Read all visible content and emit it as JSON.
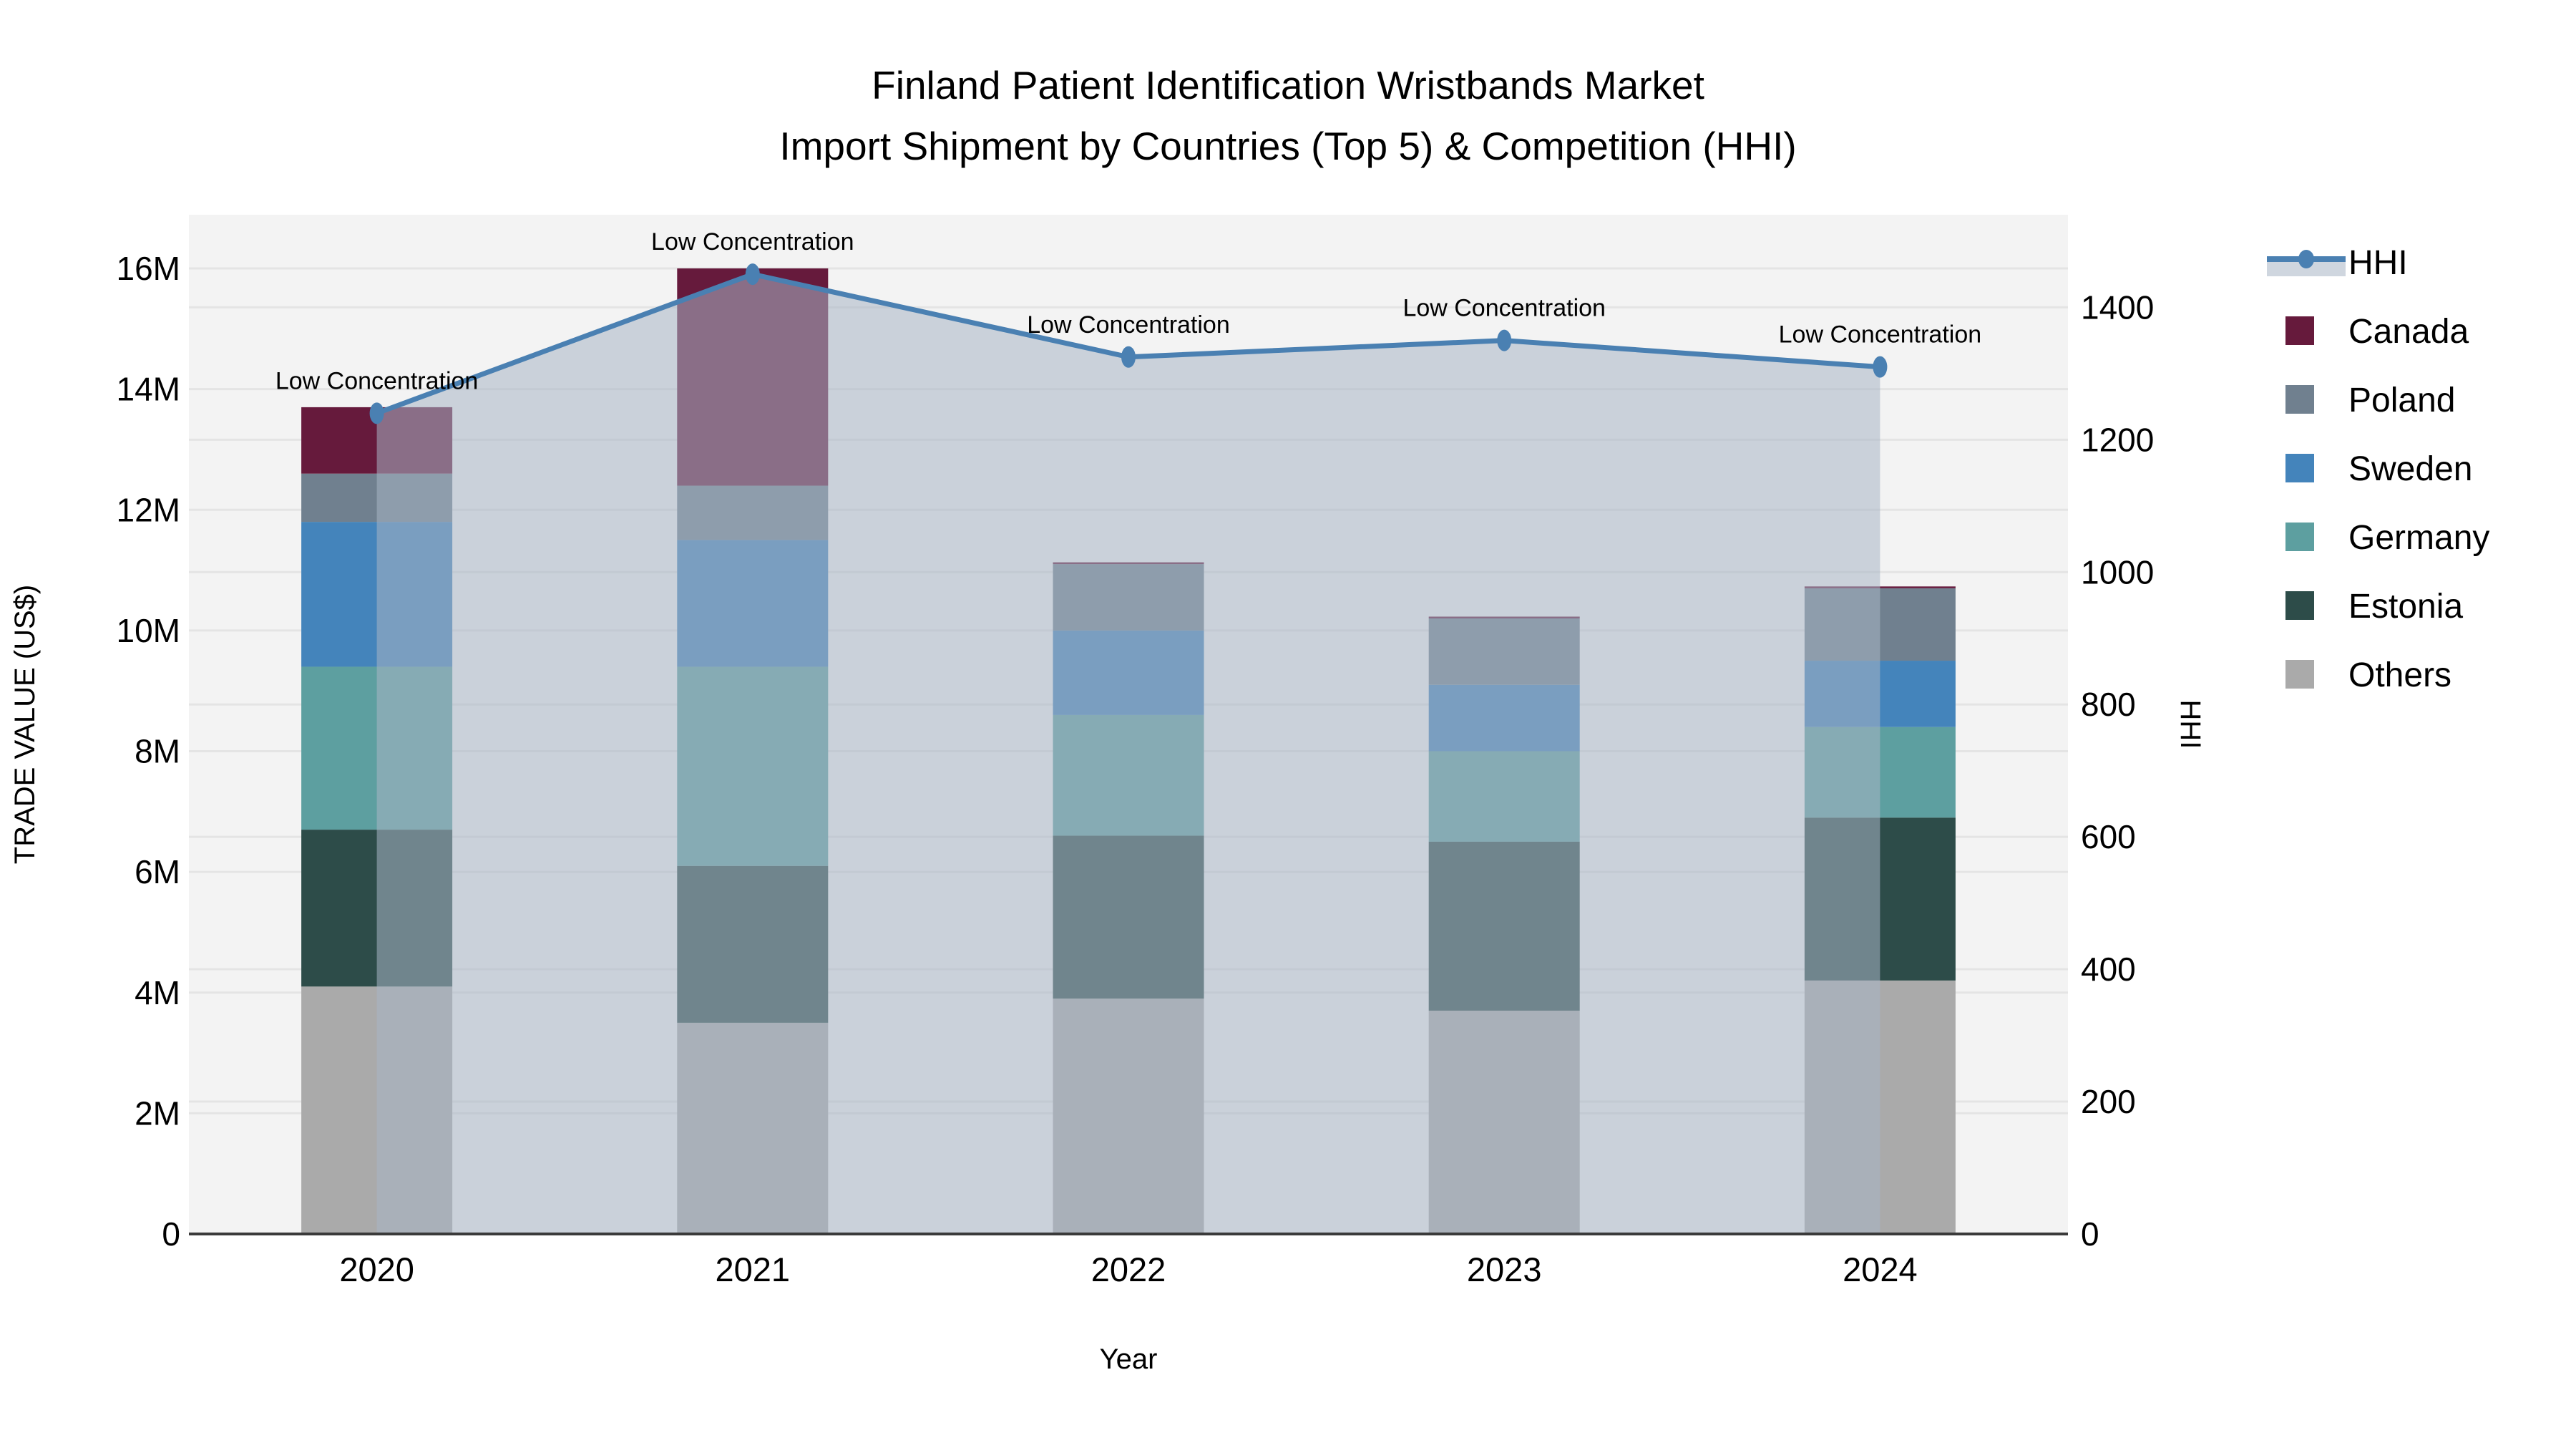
{
  "title": {
    "line1": "Finland Patient Identification Wristbands Market",
    "line2": "Import Shipment by Countries (Top 5) & Competition (HHI)"
  },
  "axes": {
    "x": {
      "title": "Year",
      "tick_labels": [
        "2020",
        "2021",
        "2022",
        "2023",
        "2024"
      ]
    },
    "y_left": {
      "title": "TRADE VALUE (US$)",
      "tick_labels": [
        "0",
        "2M",
        "4M",
        "6M",
        "8M",
        "10M",
        "12M",
        "14M",
        "16M"
      ]
    },
    "y_right": {
      "title": "HHI",
      "tick_labels": [
        "0",
        "200",
        "400",
        "600",
        "800",
        "1000",
        "1200",
        "1400"
      ]
    }
  },
  "legend": {
    "items": [
      {
        "label": "HHI",
        "type": "line"
      },
      {
        "label": "Canada",
        "type": "swatch",
        "color": "#661a3c"
      },
      {
        "label": "Poland",
        "type": "swatch",
        "color": "#70808f"
      },
      {
        "label": "Sweden",
        "type": "swatch",
        "color": "#4484bb"
      },
      {
        "label": "Germany",
        "type": "swatch",
        "color": "#5d9fa0"
      },
      {
        "label": "Estonia",
        "type": "swatch",
        "color": "#2d4c49"
      },
      {
        "label": "Others",
        "type": "swatch",
        "color": "#aaaaaa"
      }
    ]
  },
  "colors": {
    "canada": "#661a3c",
    "poland": "#70808f",
    "sweden": "#4484bb",
    "germany": "#5d9fa0",
    "estonia": "#2d4c49",
    "others": "#aaaaaa",
    "hhi_line": "#4a80b2",
    "hhi_area_fill": "rgba(168,180,196,0.55)",
    "plot_background": "#f3f3f3",
    "gridline": "#e4e4e4",
    "axis_line": "#3a3a3a"
  },
  "chart_data": {
    "type": "bar",
    "subtype": "stacked bars with overlaid line on secondary axis",
    "categories": [
      "2020",
      "2021",
      "2022",
      "2023",
      "2024"
    ],
    "value_unit": "US$ millions",
    "series": [
      {
        "name": "Others",
        "values": [
          4.1,
          3.5,
          3.9,
          3.7,
          4.2
        ]
      },
      {
        "name": "Estonia",
        "values": [
          2.6,
          2.6,
          2.7,
          2.8,
          2.7
        ]
      },
      {
        "name": "Germany",
        "values": [
          2.7,
          3.3,
          2.0,
          1.5,
          1.5
        ]
      },
      {
        "name": "Sweden",
        "values": [
          2.4,
          2.1,
          1.4,
          1.1,
          1.1
        ]
      },
      {
        "name": "Poland",
        "values": [
          0.8,
          0.9,
          1.1,
          1.1,
          1.2
        ]
      },
      {
        "name": "Canada",
        "values": [
          1.1,
          3.6,
          0.03,
          0.03,
          0.03
        ]
      }
    ],
    "bar_totals_M": [
      13.7,
      16.0,
      11.1,
      10.2,
      10.7
    ],
    "line_series": {
      "name": "HHI",
      "axis": "right",
      "values": [
        1240,
        1450,
        1325,
        1350,
        1310
      ]
    },
    "annotations": [
      {
        "x": "2020",
        "text": "Low Concentration"
      },
      {
        "x": "2021",
        "text": "Low Concentration"
      },
      {
        "x": "2022",
        "text": "Low Concentration"
      },
      {
        "x": "2023",
        "text": "Low Concentration"
      },
      {
        "x": "2024",
        "text": "Low Concentration"
      }
    ],
    "title": "Finland Patient Identification Wristbands Market Import Shipment by Countries (Top 5) & Competition (HHI)",
    "xlabel": "Year",
    "ylabel_left": "TRADE VALUE (US$)",
    "ylabel_right": "HHI",
    "ylim_left_M": [
      0,
      16.9
    ],
    "ylim_right": [
      0,
      1540
    ],
    "y_left_tick_step_M": 2,
    "y_right_tick_step": 200,
    "grid": true,
    "legend_position": "right"
  }
}
